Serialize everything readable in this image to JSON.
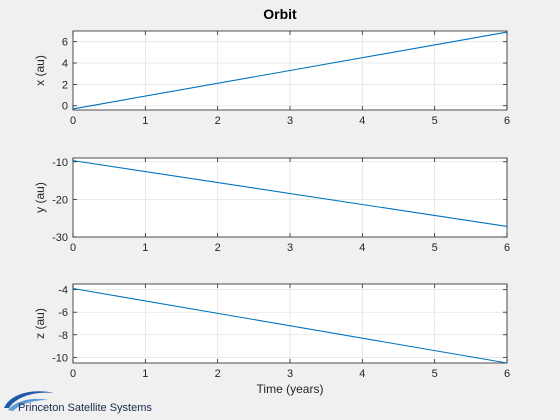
{
  "figure": {
    "background": "#f0f0f0",
    "axes_background": "#ffffff",
    "line_color": "#0072bd",
    "grid_color": "#e3e3e3"
  },
  "logo": {
    "text": "Princeton Satellite Systems",
    "icon": "swoosh-logo-icon"
  },
  "chart_data": {
    "type": "line",
    "title": "Orbit",
    "xlabel": "Time (years)",
    "grid": true,
    "subplots": [
      {
        "ylabel": "x (au)",
        "xlim": [
          0,
          6
        ],
        "ylim": [
          -0.4,
          7
        ],
        "xticks": [
          "0",
          "1",
          "2",
          "3",
          "4",
          "5",
          "6"
        ],
        "yticks": [
          "0",
          "2",
          "4",
          "6"
        ],
        "x": [
          0,
          6
        ],
        "y": [
          -0.3,
          6.9
        ]
      },
      {
        "ylabel": "y (au)",
        "xlim": [
          0,
          6
        ],
        "ylim": [
          -30,
          -9
        ],
        "xticks": [
          "0",
          "1",
          "2",
          "3",
          "4",
          "5",
          "6"
        ],
        "yticks": [
          "-10",
          "-20",
          "-30"
        ],
        "x": [
          0,
          6
        ],
        "y": [
          -9.7,
          -27.2
        ]
      },
      {
        "ylabel": "z (au)",
        "xlim": [
          0,
          6
        ],
        "ylim": [
          -10.5,
          -3.5
        ],
        "xticks": [
          "0",
          "1",
          "2",
          "3",
          "4",
          "5",
          "6"
        ],
        "yticks": [
          "-4",
          "-6",
          "-8",
          "-10"
        ],
        "x": [
          0,
          6
        ],
        "y": [
          -3.9,
          -10.5
        ]
      }
    ]
  }
}
